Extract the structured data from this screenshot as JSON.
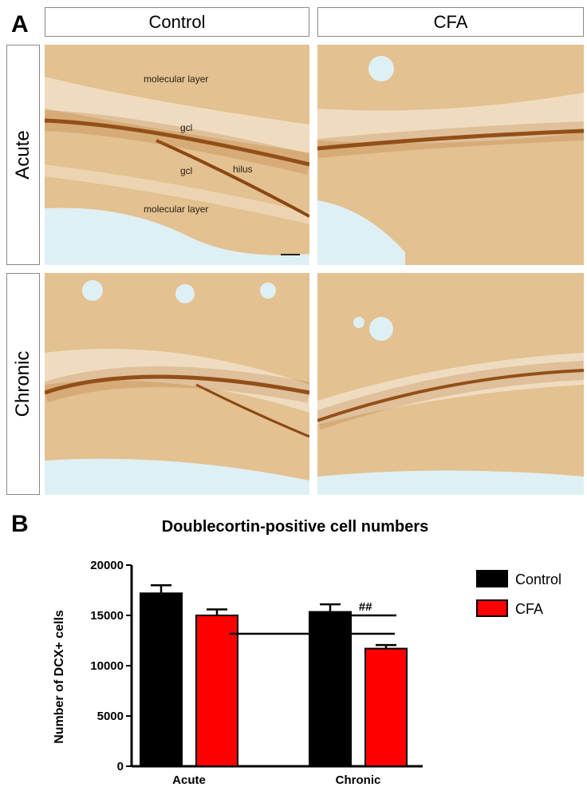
{
  "panel_a": {
    "letter": "A",
    "columns": [
      "Control",
      "CFA"
    ],
    "rows": [
      "Acute",
      "Chronic"
    ],
    "annotations": {
      "molecular_layer_top": "molecular layer",
      "gcl_upper": "gcl",
      "gcl_lower": "gcl",
      "hilus": "hilus",
      "molecular_layer_bottom": "molecular layer"
    },
    "colors": {
      "tissue": "#e3c190",
      "stain": "#8a4612",
      "ventricle": "#dff0f5"
    }
  },
  "panel_b": {
    "letter": "B",
    "legend": [
      "Control",
      "CFA"
    ],
    "significance": {
      "star": "*",
      "hash": "##"
    }
  },
  "chart_data": {
    "type": "bar",
    "title": "Doublecortin-positive cell numbers",
    "ylabel": "Number of DCX+ cells",
    "xlabel": "",
    "categories": [
      "Acute",
      "Chronic"
    ],
    "series": [
      {
        "name": "Control",
        "values": [
          17200,
          15350
        ],
        "errors": [
          800,
          750
        ],
        "color": "#000000"
      },
      {
        "name": "CFA",
        "values": [
          15000,
          11700
        ],
        "errors": [
          600,
          350
        ],
        "color": "#ff0000"
      }
    ],
    "ylim": [
      0,
      20000
    ],
    "yticks": [
      "0",
      "5000",
      "10000",
      "15000",
      "20000"
    ],
    "legend_position": "right",
    "grid": false
  }
}
